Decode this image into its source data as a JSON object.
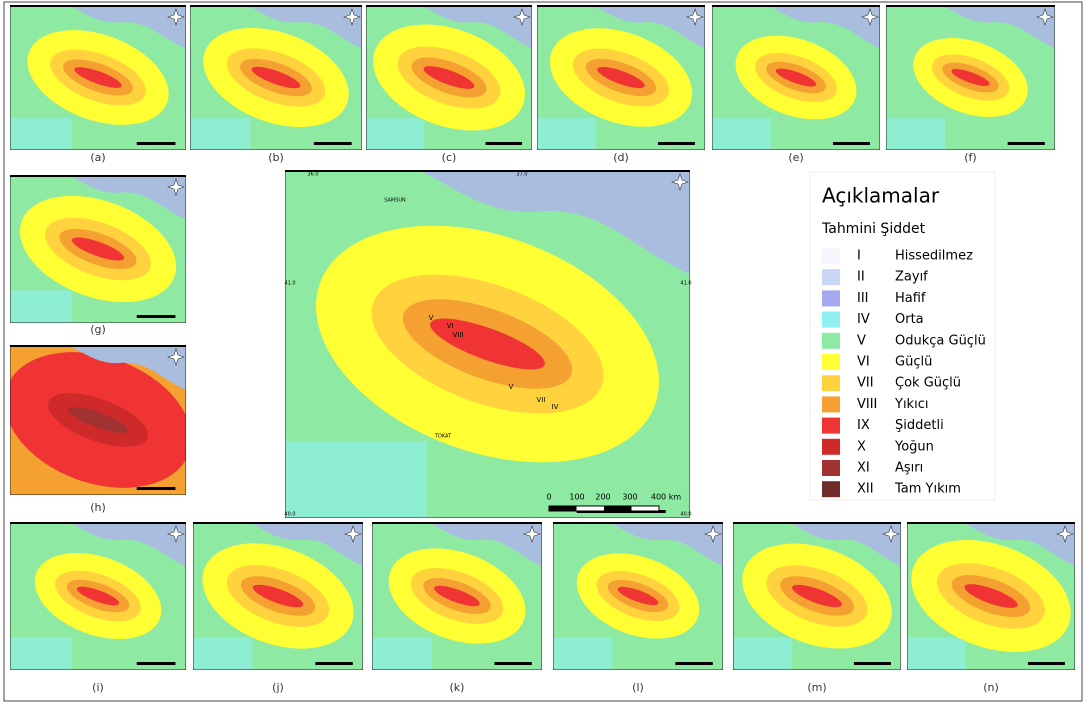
{
  "panel_labels": [
    "(a)",
    "(b)",
    "(c)",
    "(d)",
    "(e)",
    "(f)",
    "(g)",
    "(h)",
    "(i)",
    "(j)",
    "(k)",
    "(l)",
    "(m)",
    "(n)"
  ],
  "main_map": {
    "lon_labels": [
      "36.0",
      "37.0"
    ],
    "lat_labels": [
      "41.0",
      "41.0",
      "40.0",
      "40.0"
    ],
    "cities": [
      "SAMSUN",
      "TOKAT"
    ],
    "scale_labels": [
      "0",
      "100",
      "200",
      "300",
      "400 km"
    ],
    "contour_labels": [
      "V",
      "VI",
      "VIII",
      "VII",
      "IV",
      "V"
    ]
  },
  "legend": {
    "title": "Açıklamalar",
    "subtitle": "Tahmini Şiddet",
    "items": [
      {
        "roman": "I",
        "name": "Hissedilmez",
        "color": "#f4f6fc"
      },
      {
        "roman": "II",
        "name": "Zayıf",
        "color": "#c9d5f5"
      },
      {
        "roman": "III",
        "name": "Hafif",
        "color": "#a7a9ef"
      },
      {
        "roman": "IV",
        "name": "Orta",
        "color": "#8ef0f2"
      },
      {
        "roman": "V",
        "name": "Odukça Güçlü",
        "color": "#8eeaa2"
      },
      {
        "roman": "VI",
        "name": "Güçlü",
        "color": "#ffff33"
      },
      {
        "roman": "VII",
        "name": "Çok Güçlü",
        "color": "#ffd23e"
      },
      {
        "roman": "VIII",
        "name": "Yıkıcı",
        "color": "#f5a132"
      },
      {
        "roman": "IX",
        "name": "Şiddetli",
        "color": "#f03434"
      },
      {
        "roman": "X",
        "name": "Yoğun",
        "color": "#cf2a2a"
      },
      {
        "roman": "XI",
        "name": "Aşırı",
        "color": "#a13232"
      },
      {
        "roman": "XII",
        "name": "Tam Yıkım",
        "color": "#6f2a2a"
      }
    ]
  }
}
